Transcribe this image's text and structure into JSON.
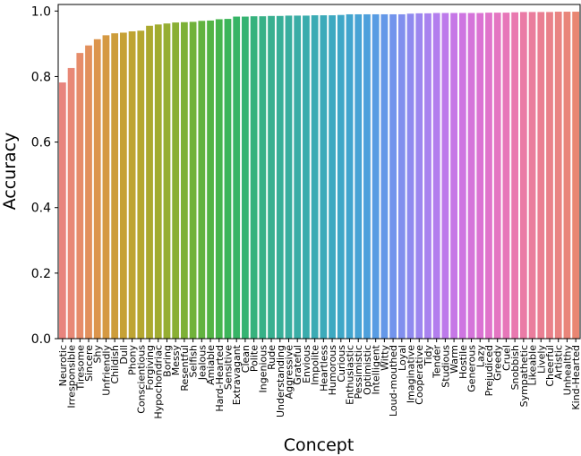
{
  "chart_data": {
    "type": "bar",
    "xlabel": "Concept",
    "ylabel": "Accuracy",
    "ylim": [
      0,
      1.02
    ],
    "yticks": [
      "0.0",
      "0.2",
      "0.4",
      "0.6",
      "0.8",
      "1.0"
    ],
    "grid": false,
    "legend": "none",
    "categories": [
      "Neurotic",
      "Irresponsible",
      "Tiresome",
      "Sincere",
      "Shy",
      "Unfriendly",
      "Childish",
      "Dull",
      "Phony",
      "Conscientious",
      "Forgiving",
      "Hypochondriac",
      "Boring",
      "Messy",
      "Resentful",
      "Selfish",
      "Jealous",
      "Amiable",
      "Hard-Hearted",
      "Sensitive",
      "Extravagant",
      "Clean",
      "Polite",
      "Ingenious",
      "Rude",
      "Understanding",
      "Aggressive",
      "Grateful",
      "Envious",
      "Impolite",
      "Heartless",
      "Humorous",
      "Curious",
      "Enthusiastic",
      "Pessimistic",
      "Optimistic",
      "Intelligent",
      "Witty",
      "Loud-mouthed",
      "Loyal",
      "Imaginative",
      "Cooperative",
      "Tidy",
      "Tender",
      "Studious",
      "Warm",
      "Hostile",
      "Generous",
      "Lazy",
      "Prejudiced",
      "Greedy",
      "Cruel",
      "Snobbish",
      "Sympathetic",
      "Likeable",
      "Lively",
      "Cheerful",
      "Artistic",
      "Unhealthy",
      "Kind-Hearted"
    ],
    "values": [
      0.782,
      0.826,
      0.872,
      0.895,
      0.914,
      0.926,
      0.932,
      0.934,
      0.938,
      0.94,
      0.955,
      0.959,
      0.962,
      0.965,
      0.966,
      0.967,
      0.97,
      0.971,
      0.975,
      0.976,
      0.983,
      0.983,
      0.984,
      0.984,
      0.985,
      0.985,
      0.986,
      0.986,
      0.986,
      0.987,
      0.987,
      0.987,
      0.988,
      0.99,
      0.99,
      0.99,
      0.99,
      0.99,
      0.99,
      0.99,
      0.992,
      0.993,
      0.993,
      0.994,
      0.994,
      0.994,
      0.994,
      0.994,
      0.994,
      0.995,
      0.995,
      0.995,
      0.996,
      0.997,
      0.997,
      0.997,
      0.997,
      0.998,
      0.998,
      0.998
    ],
    "colors": [
      "#e8847e",
      "#e88876",
      "#e68c6a",
      "#e2905c",
      "#dc954d",
      "#d59942",
      "#cd9d3b",
      "#c6a136",
      "#bea433",
      "#b5a730",
      "#aba92f",
      "#a1ac30",
      "#96ae32",
      "#8aaf34",
      "#7db137",
      "#70b23a",
      "#62b33f",
      "#54b445",
      "#47b54e",
      "#3cb55a",
      "#36b466",
      "#35b372",
      "#36b27d",
      "#37b187",
      "#38b090",
      "#38af98",
      "#39ae9f",
      "#3aada6",
      "#3aacad",
      "#3babb4",
      "#3caaba",
      "#3da9c1",
      "#3fa7c7",
      "#42a5ce",
      "#47a3d5",
      "#4ea0dc",
      "#589ce3",
      "#6498e8",
      "#7294ec",
      "#818fee",
      "#8f8aef",
      "#9c86ef",
      "#a882ef",
      "#b37eee",
      "#bd7aeb",
      "#c677e6",
      "#ce75e1",
      "#d574da",
      "#db73d3",
      "#e074cb",
      "#e475c2",
      "#e777b9",
      "#e979b0",
      "#ea7ba6",
      "#ea7d9d",
      "#ea7f93",
      "#e9818a",
      "#e98382",
      "#e9857a",
      "#e98672"
    ]
  }
}
